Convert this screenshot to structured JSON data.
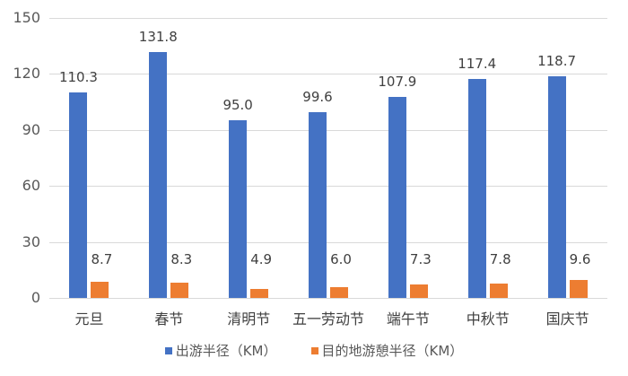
{
  "chart_data": {
    "type": "bar",
    "title": "",
    "xlabel": "",
    "ylabel": "",
    "ylim": [
      0,
      150
    ],
    "yticks": [
      0,
      30,
      60,
      90,
      120,
      150
    ],
    "grid": true,
    "legend_position": "bottom",
    "categories": [
      "元旦",
      "春节",
      "清明节",
      "五一劳动节",
      "端午节",
      "中秋节",
      "国庆节"
    ],
    "series": [
      {
        "name": "出游半径（KM）",
        "color": "#4472C4",
        "values": [
          110.3,
          131.8,
          95.0,
          99.6,
          107.9,
          117.4,
          118.7
        ],
        "labels": [
          "110.3",
          "131.8",
          "95.0",
          "99.6",
          "107.9",
          "117.4",
          "118.7"
        ]
      },
      {
        "name": "目的地游憩半径（KM）",
        "color": "#ED7D31",
        "values": [
          8.7,
          8.3,
          4.9,
          6.0,
          7.3,
          7.8,
          9.6
        ],
        "labels": [
          "8.7",
          "8.3",
          "4.9",
          "6.0",
          "7.3",
          "7.8",
          "9.6"
        ]
      }
    ]
  }
}
